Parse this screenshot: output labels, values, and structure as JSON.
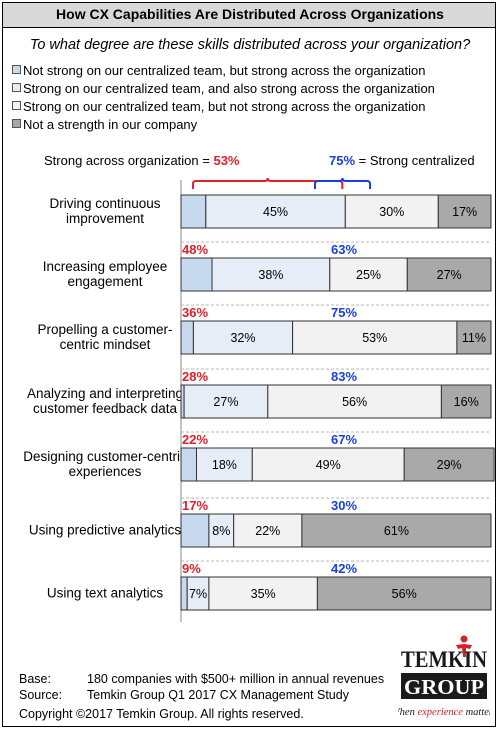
{
  "title": "How CX Capabilities Are Distributed Across Organizations",
  "subtitle": "To what degree are these skills distributed across your organization?",
  "legend": [
    {
      "label": "Not strong on our centralized team, but strong across the organization",
      "color": "#c6d9ef"
    },
    {
      "label": "Strong on our centralized team, and also strong across the organization",
      "color": "#e6edf7"
    },
    {
      "label": "Strong on our centralized team, but not strong across the organization",
      "color": "#f2f2f2"
    },
    {
      "label": "Not a strength in our company",
      "color": "#a9a9a9"
    }
  ],
  "annotation": {
    "left_label": "Strong across organization = ",
    "left_value": "53%",
    "right_value": "75%",
    "right_label": " = Strong centralized",
    "left_color": "#e0202b",
    "right_color": "#1a3fe0"
  },
  "chart_data": {
    "type": "bar",
    "orientation": "horizontal-stacked",
    "categories": [
      [
        "Driving continuous",
        "improvement"
      ],
      [
        "Increasing employee",
        "engagement"
      ],
      [
        "Propelling a customer-",
        "centric mindset"
      ],
      [
        "Analyzing and interpreting",
        "customer feedback data"
      ],
      [
        "Designing customer-centric",
        "experiences"
      ],
      [
        "Using predictive analytics"
      ],
      [
        "Using text analytics"
      ]
    ],
    "series": [
      {
        "name": "Not strong on our centralized team, but strong across the organization",
        "values": [
          8,
          10,
          4,
          1,
          5,
          9,
          2
        ],
        "color": "#c6d9ef"
      },
      {
        "name": "Strong on our centralized team, and also strong across the organization",
        "values": [
          45,
          38,
          32,
          27,
          18,
          8,
          7
        ],
        "color": "#e6edf7"
      },
      {
        "name": "Strong on our centralized team, but not strong across the organization",
        "values": [
          30,
          25,
          53,
          56,
          49,
          22,
          35
        ],
        "color": "#f2f2f2"
      },
      {
        "name": "Not a strength in our company",
        "values": [
          17,
          27,
          11,
          16,
          29,
          61,
          56
        ],
        "color": "#a9a9a9"
      }
    ],
    "segment_labels": [
      [
        "",
        "45%",
        "30%",
        "17%"
      ],
      [
        "",
        "38%",
        "25%",
        "27%"
      ],
      [
        "",
        "32%",
        "53%",
        "11%"
      ],
      [
        "",
        "27%",
        "56%",
        "16%"
      ],
      [
        "",
        "18%",
        "49%",
        "29%"
      ],
      [
        "",
        "8%",
        "22%",
        "61%"
      ],
      [
        "",
        "7%",
        "35%",
        "56%"
      ]
    ],
    "strong_across_org": [
      "53%",
      "48%",
      "36%",
      "28%",
      "22%",
      "17%",
      "9%"
    ],
    "strong_centralized": [
      "75%",
      "63%",
      "75%",
      "83%",
      "67%",
      "30%",
      "42%"
    ],
    "xlim": [
      0,
      100
    ],
    "grid": false
  },
  "footer": {
    "base_label": "Base:",
    "base_text": "180 companies with $500+ million in annual revenues",
    "source_label": "Source:",
    "source_text": "Temkin Group Q1 2017 CX Management Study",
    "copyright": "Copyright ©2017 Temkin Group. All rights reserved."
  },
  "logo": {
    "line1": "TEMKIN",
    "line2": "GROUP",
    "tagline_pre": "When ",
    "tagline_em": "experience",
    "tagline_post": " matters"
  }
}
